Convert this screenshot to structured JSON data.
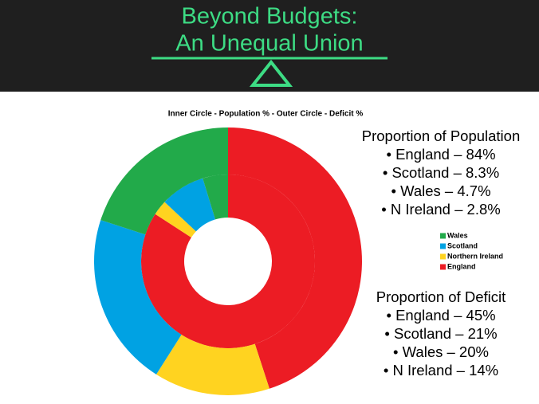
{
  "header": {
    "title_lines": [
      "Beyond Budgets:",
      "An Unequal Union"
    ]
  },
  "chart_data": {
    "type": "donut",
    "title": "Inner Circle - Population % - Outer Circle - Deficit %",
    "categories": [
      "England",
      "Northern Ireland",
      "Scotland",
      "Wales"
    ],
    "colors": [
      "#ec1c24",
      "#ffd320",
      "#00a2e3",
      "#22aa4a"
    ],
    "series": [
      {
        "values": [
          84,
          2.8,
          8.3,
          4.7
        ]
      },
      {
        "values": [
          45,
          14,
          21,
          20
        ]
      }
    ],
    "annotations": [
      {
        "heading": "Proportion of Population",
        "items": [
          "England – 84%",
          "Scotland – 8.3%",
          "Wales – 4.7%",
          "N Ireland – 2.8%"
        ]
      },
      {
        "heading": "Proportion of Deficit",
        "items": [
          "England – 45%",
          "Scotland – 21%",
          "Wales – 20%",
          "N Ireland – 14%"
        ]
      }
    ]
  }
}
